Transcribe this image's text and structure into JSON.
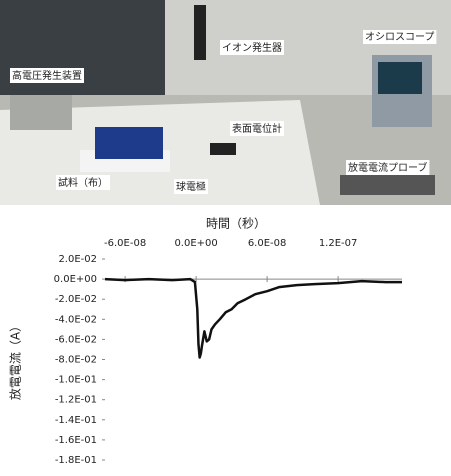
{
  "photo_labels": [
    "イオン発生器",
    "オシロスコープ",
    "高電圧発生装置",
    "表面電位計",
    "放電電流プローブ",
    "試料（布）",
    "球電極"
  ],
  "chart_data": {
    "type": "line",
    "title": "時間（秒）",
    "y_label": "放電電流（A）",
    "x": [
      -7.7e-08,
      -6e-08,
      -4e-08,
      -2e-08,
      -5e-09,
      -1e-09,
      1e-09,
      2e-09,
      3e-09,
      4e-09,
      5e-09,
      7e-09,
      9e-09,
      1.1e-08,
      1.3e-08,
      1.6e-08,
      2e-08,
      2.5e-08,
      3e-08,
      3.5e-08,
      4.2e-08,
      5e-08,
      6e-08,
      7e-08,
      8.5e-08,
      1e-07,
      1.2e-07,
      1.4e-07,
      1.6e-07,
      1.74e-07
    ],
    "series": [
      {
        "name": "放電電流",
        "color": "#111111",
        "values": [
          0.0,
          -0.001,
          0.0,
          -0.001,
          0.0,
          -0.003,
          -0.03,
          -0.065,
          -0.078,
          -0.074,
          -0.066,
          -0.052,
          -0.062,
          -0.06,
          -0.05,
          -0.045,
          -0.04,
          -0.033,
          -0.03,
          -0.024,
          -0.02,
          -0.015,
          -0.012,
          -0.008,
          -0.006,
          -0.005,
          -0.004,
          -0.002,
          -0.003,
          -0.003
        ]
      }
    ],
    "xlim": [
      -7.7e-08,
      1.74e-07
    ],
    "xticks": [
      {
        "value": -6e-08,
        "label": "-6.0E-08"
      },
      {
        "value": 0,
        "label": "0.0E+00"
      },
      {
        "value": 6e-08,
        "label": "6.0E-08"
      },
      {
        "value": 1.2e-07,
        "label": "1.2E-07"
      }
    ],
    "ylim": [
      -0.18,
      0.02
    ],
    "yticks": [
      {
        "value": 0.02,
        "label": "2.0E-02"
      },
      {
        "value": 0,
        "label": "0.0E+00"
      },
      {
        "value": -0.02,
        "label": "-2.0E-02"
      },
      {
        "value": -0.04,
        "label": "-4.0E-02"
      },
      {
        "value": -0.06,
        "label": "-6.0E-02"
      },
      {
        "value": -0.08,
        "label": "-8.0E-02"
      },
      {
        "value": -0.1,
        "label": "-1.0E-01"
      },
      {
        "value": -0.12,
        "label": "-1.2E-01"
      },
      {
        "value": -0.14,
        "label": "-1.4E-01"
      },
      {
        "value": -0.16,
        "label": "-1.6E-01"
      },
      {
        "value": -0.18,
        "label": "-1.8E-01"
      }
    ]
  }
}
